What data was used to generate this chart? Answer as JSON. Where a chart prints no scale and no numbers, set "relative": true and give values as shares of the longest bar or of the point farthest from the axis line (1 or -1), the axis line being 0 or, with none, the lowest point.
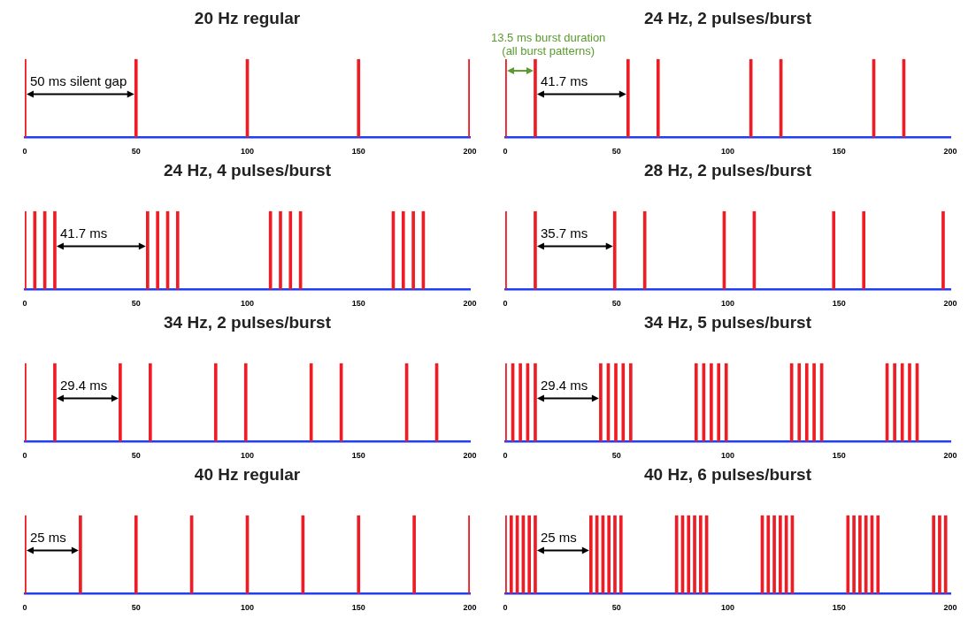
{
  "chart_data": [
    {
      "type": "bar",
      "title": "20 Hz regular",
      "relative": true,
      "color": "#ee1c25",
      "x": [
        0,
        50,
        100,
        150,
        200
      ],
      "values": [
        1,
        1,
        1,
        1,
        1
      ],
      "xlim": [
        0,
        200
      ],
      "xticks": [
        0,
        50,
        100,
        150,
        200
      ],
      "annotations": [
        "50 ms silent gap"
      ]
    },
    {
      "type": "bar",
      "title": "24 Hz, 2 pulses/burst",
      "relative": true,
      "color": "#ee1c25",
      "x": [
        0,
        13.5,
        55.2,
        68.7,
        110.4,
        123.9,
        165.6,
        179.1
      ],
      "values": [
        1,
        1,
        1,
        1,
        1,
        1,
        1,
        1
      ],
      "xlim": [
        0,
        200
      ],
      "xticks": [
        0,
        50,
        100,
        150,
        200
      ],
      "annotations": [
        "13.5 ms burst duration (all burst patterns)",
        "41.7 ms"
      ]
    },
    {
      "type": "bar",
      "title": "24 Hz, 4 pulses/burst",
      "relative": true,
      "color": "#ee1c25",
      "x": [
        0,
        4.5,
        9,
        13.5,
        55.2,
        59.7,
        64.2,
        68.7,
        110.4,
        114.9,
        119.4,
        123.9,
        165.6,
        170.1,
        174.6,
        179.1
      ],
      "values": [
        1,
        1,
        1,
        1,
        1,
        1,
        1,
        1,
        1,
        1,
        1,
        1,
        1,
        1,
        1,
        1
      ],
      "xlim": [
        0,
        200
      ],
      "xticks": [
        0,
        50,
        100,
        150,
        200
      ],
      "annotations": [
        "41.7 ms"
      ]
    },
    {
      "type": "bar",
      "title": "28 Hz, 2 pulses/burst",
      "relative": true,
      "color": "#ee1c25",
      "x": [
        0,
        13.5,
        49.2,
        62.7,
        98.4,
        111.9,
        147.6,
        161.1,
        196.8
      ],
      "values": [
        1,
        1,
        1,
        1,
        1,
        1,
        1,
        1,
        1
      ],
      "xlim": [
        0,
        200
      ],
      "xticks": [
        0,
        50,
        100,
        150,
        200
      ],
      "annotations": [
        "35.7 ms"
      ]
    },
    {
      "type": "bar",
      "title": "34 Hz, 2 pulses/burst",
      "relative": true,
      "color": "#ee1c25",
      "x": [
        0,
        13.5,
        42.9,
        56.4,
        85.8,
        99.3,
        128.7,
        142.2,
        171.6,
        185.1
      ],
      "values": [
        1,
        1,
        1,
        1,
        1,
        1,
        1,
        1,
        1,
        1
      ],
      "xlim": [
        0,
        200
      ],
      "xticks": [
        0,
        50,
        100,
        150,
        200
      ],
      "annotations": [
        "29.4 ms"
      ]
    },
    {
      "type": "bar",
      "title": "34 Hz, 5 pulses/burst",
      "relative": true,
      "color": "#ee1c25",
      "x": [
        0,
        3.4,
        6.8,
        10.1,
        13.5,
        42.9,
        46.3,
        49.7,
        53,
        56.4,
        85.8,
        89.2,
        92.6,
        95.9,
        99.3,
        128.7,
        132.1,
        135.5,
        138.8,
        142.2,
        171.6,
        175,
        178.4,
        181.7,
        185.1
      ],
      "values": [
        1,
        1,
        1,
        1,
        1,
        1,
        1,
        1,
        1,
        1,
        1,
        1,
        1,
        1,
        1,
        1,
        1,
        1,
        1,
        1,
        1,
        1,
        1,
        1,
        1
      ],
      "xlim": [
        0,
        200
      ],
      "xticks": [
        0,
        50,
        100,
        150,
        200
      ],
      "annotations": [
        "29.4 ms"
      ]
    },
    {
      "type": "bar",
      "title": "40 Hz regular",
      "relative": true,
      "color": "#ee1c25",
      "x": [
        0,
        25,
        50,
        75,
        100,
        125,
        150,
        175,
        200
      ],
      "values": [
        1,
        1,
        1,
        1,
        1,
        1,
        1,
        1,
        1
      ],
      "xlim": [
        0,
        200
      ],
      "xticks": [
        0,
        50,
        100,
        150,
        200
      ],
      "annotations": [
        "25 ms"
      ]
    },
    {
      "type": "bar",
      "title": "40 Hz, 6 pulses/burst",
      "relative": true,
      "color": "#ee1c25",
      "x": [
        0,
        2.7,
        5.4,
        8.1,
        10.8,
        13.5,
        38.5,
        41.2,
        43.9,
        46.6,
        49.3,
        52,
        77,
        79.7,
        82.4,
        85.1,
        87.8,
        90.5,
        115.5,
        118.2,
        120.9,
        123.6,
        126.3,
        129,
        154,
        156.7,
        159.4,
        162.1,
        164.8,
        167.5,
        192.5,
        195.2,
        197.9
      ],
      "values": [
        1,
        1,
        1,
        1,
        1,
        1,
        1,
        1,
        1,
        1,
        1,
        1,
        1,
        1,
        1,
        1,
        1,
        1,
        1,
        1,
        1,
        1,
        1,
        1,
        1,
        1,
        1,
        1,
        1,
        1,
        1,
        1,
        1
      ],
      "xlim": [
        0,
        200
      ],
      "xticks": [
        0,
        50,
        100,
        150,
        200
      ],
      "annotations": [
        "25 ms"
      ]
    }
  ]
}
